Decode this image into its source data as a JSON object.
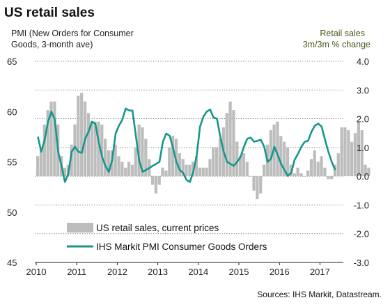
{
  "title": "US retail sales",
  "left_axis_label": [
    "PMI (New Orders for Consumer",
    "Goods, 3-month ave)"
  ],
  "right_axis_label": [
    "Retail sales",
    "3m/3m % change"
  ],
  "source": "Sources: IHS Markit, Datastream.",
  "colors": {
    "bars": "#bdbdbd",
    "line": "#17968a",
    "right_label": "#4a5a1e"
  },
  "chart_data": {
    "type": "bar+line",
    "x_ticks": [
      "2010",
      "2011",
      "2012",
      "2013",
      "2014",
      "2015",
      "2016",
      "2017"
    ],
    "y_left": {
      "ticks": [
        "65",
        "60",
        "55",
        "50",
        "45"
      ],
      "range": [
        45,
        65
      ]
    },
    "y_right": {
      "ticks": [
        "4.0",
        "3.0",
        "2.0",
        "1.0",
        "0.0",
        "-1.0",
        "-2.0",
        "-3.0"
      ],
      "range": [
        -3.0,
        4.0
      ]
    },
    "grid": "horizontal dotted",
    "legend_position": "bottom-left",
    "series": [
      {
        "name": "US retail sales, current prices",
        "kind": "bar",
        "axis": "right",
        "start": "2010-01",
        "frequency": "monthly",
        "values": [
          0.7,
          1.0,
          1.8,
          2.3,
          2.6,
          2.6,
          1.8,
          0.7,
          0.3,
          0.4,
          1.1,
          1.8,
          2.8,
          2.9,
          2.6,
          2.2,
          1.9,
          1.9,
          1.9,
          1.8,
          1.3,
          0.9,
          0.9,
          1.1,
          0.7,
          0.5,
          0.3,
          0.5,
          0.4,
          1.0,
          1.8,
          1.7,
          1.3,
          0.6,
          -0.3,
          -0.6,
          -0.3,
          0.3,
          0.2,
          1.0,
          1.4,
          1.3,
          0.8,
          0.6,
          0.4,
          0.4,
          0.5,
          0.7,
          0.3,
          0.3,
          0.3,
          0.6,
          1.0,
          1.0,
          1.3,
          1.7,
          2.2,
          2.6,
          2.3,
          1.2,
          0.7,
          0.8,
          0.5,
          0.0,
          -0.5,
          -0.8,
          -0.6,
          0.4,
          1.1,
          1.6,
          1.8,
          1.9,
          1.4,
          1.2,
          1.0,
          0.4,
          0.1,
          0.3,
          0.1,
          0.0,
          0.2,
          0.6,
          0.9,
          0.5,
          0.7,
          0.3,
          -0.1,
          -0.1,
          0.4,
          0.8,
          1.7,
          1.7,
          1.6,
          1.2,
          1.5,
          1.9,
          1.6,
          0.4,
          0.3
        ]
      },
      {
        "name": "IHS Markit PMI Consumer Goods Orders",
        "kind": "line",
        "axis": "left",
        "start": "2010-01",
        "frequency": "monthly",
        "values": [
          57.5,
          56.0,
          57.2,
          59.0,
          60.0,
          59.2,
          56.0,
          54.6,
          53.0,
          53.8,
          56.0,
          56.5,
          56.0,
          55.9,
          57.3,
          58.0,
          59.0,
          58.8,
          57.0,
          55.5,
          54.6,
          54.0,
          55.2,
          57.8,
          58.6,
          59.2,
          60.3,
          60.1,
          60.1,
          57.6,
          55.1,
          54.0,
          54.2,
          54.4,
          54.6,
          54.8,
          55.0,
          57.0,
          57.8,
          57.6,
          56.4,
          55.0,
          54.2,
          53.9,
          53.2,
          53.0,
          54.0,
          55.6,
          58.5,
          59.5,
          60.0,
          60.2,
          59.4,
          59.3,
          57.5,
          56.0,
          55.0,
          54.8,
          54.6,
          55.0,
          55.5,
          56.5,
          57.3,
          57.4,
          57.0,
          57.1,
          57.2,
          56.5,
          55.0,
          55.3,
          56.5,
          55.7,
          54.8,
          54.2,
          53.6,
          53.9,
          55.2,
          55.8,
          56.5,
          57.0,
          57.1,
          58.0,
          58.6,
          58.8,
          58.5,
          57.2,
          56.0,
          55.0,
          54.2
        ]
      }
    ],
    "legend": [
      "US retail sales, current prices",
      "IHS Markit PMI Consumer Goods Orders"
    ]
  }
}
